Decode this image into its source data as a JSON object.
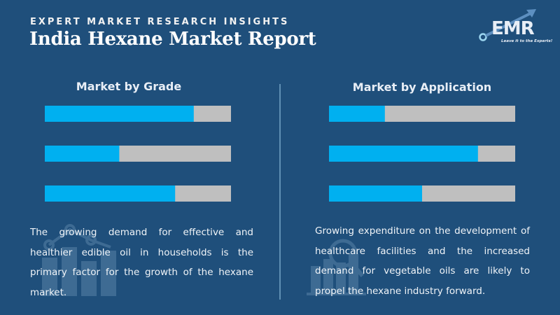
{
  "header": {
    "eyebrow": "EXPERT MARKET RESEARCH INSIGHTS",
    "title": "India Hexane Market Report"
  },
  "logo": {
    "text": "EMR",
    "tagline": "Leave it to the Experts!"
  },
  "colors": {
    "background": "#1f4f7b",
    "bar_fill": "#00b0f0",
    "bar_track": "#bfbfbf",
    "divider": "#5f8fb3"
  },
  "panels": [
    {
      "title": "Market by Grade",
      "description": "The growing demand for effective and healthier edible oil in households is the primary factor for the growth of the hexane market.",
      "watermark_icon": "bar-line-chart-icon"
    },
    {
      "title": "Market by Application",
      "description": "Growing expenditure on the development of healthcare facilities and the increased demand for vegetable oils are likely to propel the hexane industry forward.",
      "watermark_icon": "magnifier-bar-chart-icon"
    }
  ],
  "chart_data": [
    {
      "type": "bar",
      "orientation": "horizontal",
      "title": "Market by Grade",
      "categories": [
        "",
        "",
        ""
      ],
      "values": [
        80,
        40,
        70
      ],
      "xlim": [
        0,
        100
      ],
      "xlabel": "",
      "ylabel": "",
      "grid": false,
      "legend": "none"
    },
    {
      "type": "bar",
      "orientation": "horizontal",
      "title": "Market by Application",
      "categories": [
        "",
        "",
        ""
      ],
      "values": [
        30,
        80,
        50
      ],
      "xlim": [
        0,
        100
      ],
      "xlabel": "",
      "ylabel": "",
      "grid": false,
      "legend": "none"
    }
  ]
}
